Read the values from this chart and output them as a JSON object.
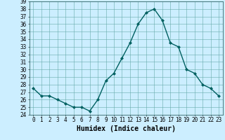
{
  "x": [
    0,
    1,
    2,
    3,
    4,
    5,
    6,
    7,
    8,
    9,
    10,
    11,
    12,
    13,
    14,
    15,
    16,
    17,
    18,
    19,
    20,
    21,
    22,
    23
  ],
  "y": [
    27.5,
    26.5,
    26.5,
    26.0,
    25.5,
    25.0,
    25.0,
    24.5,
    26.0,
    28.5,
    29.5,
    31.5,
    33.5,
    36.0,
    37.5,
    38.0,
    36.5,
    33.5,
    33.0,
    30.0,
    29.5,
    28.0,
    27.5,
    26.5
  ],
  "line_color": "#006060",
  "marker": "D",
  "marker_size": 2,
  "line_width": 1.0,
  "xlabel": "Humidex (Indice chaleur)",
  "xlabel_fontsize": 7,
  "background_color": "#cceeff",
  "grid_color": "#66aaaa",
  "ylim": [
    24,
    39
  ],
  "xlim": [
    -0.5,
    23.5
  ],
  "yticks": [
    24,
    25,
    26,
    27,
    28,
    29,
    30,
    31,
    32,
    33,
    34,
    35,
    36,
    37,
    38,
    39
  ],
  "xticks": [
    0,
    1,
    2,
    3,
    4,
    5,
    6,
    7,
    8,
    9,
    10,
    11,
    12,
    13,
    14,
    15,
    16,
    17,
    18,
    19,
    20,
    21,
    22,
    23
  ],
  "tick_fontsize": 5.5,
  "spine_color": "#336666"
}
